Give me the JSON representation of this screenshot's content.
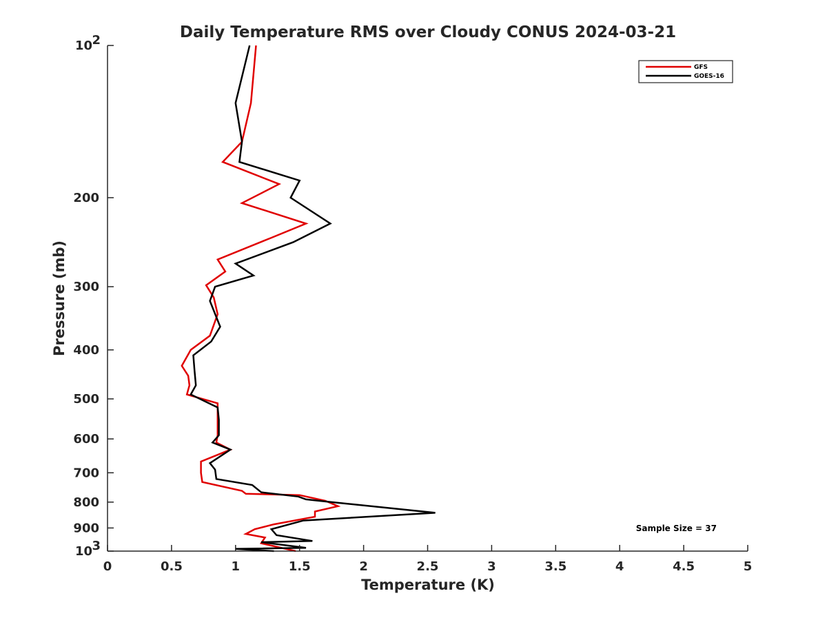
{
  "chart_data": {
    "type": "line",
    "title": "Daily Temperature RMS over Cloudy CONUS 2024-03-21",
    "xlabel": "Temperature (K)",
    "ylabel": "Pressure (mb)",
    "xlim": [
      0,
      5
    ],
    "ylim": [
      100,
      1000
    ],
    "y_scale": "log",
    "y_reversed": true,
    "x_ticks": [
      0,
      0.5,
      1,
      1.5,
      2,
      2.5,
      3,
      3.5,
      4,
      4.5,
      5
    ],
    "x_tick_labels": [
      "0",
      "0.5",
      "1",
      "1.5",
      "2",
      "2.5",
      "3",
      "3.5",
      "4",
      "4.5",
      "5"
    ],
    "y_ticks": [
      200,
      300,
      400,
      500,
      600,
      700,
      800,
      900
    ],
    "y_tick_labels": [
      "200",
      "300",
      "400",
      "500",
      "600",
      "700",
      "800",
      "900"
    ],
    "y_decade_ticks": [
      100,
      1000
    ],
    "y_decade_base": "10",
    "y_decade_exponents": [
      "2",
      "3"
    ],
    "grid": false,
    "legend_position": "top-right",
    "annotation": "Sample Size = 37",
    "series": [
      {
        "name": "GFS",
        "color": "#e00000",
        "x": [
          1.16,
          1.12,
          1.05,
          0.9,
          1.34,
          1.05,
          1.55,
          1.28,
          0.86,
          0.92,
          0.77,
          0.83,
          0.86,
          0.8,
          0.65,
          0.58,
          0.63,
          0.64,
          0.62,
          0.86,
          0.86,
          0.86,
          0.85,
          0.96,
          0.73,
          0.73,
          0.74,
          1.05,
          1.08,
          1.5,
          1.7,
          1.8,
          1.62,
          1.62,
          1.3,
          1.15,
          1.08,
          1.23,
          1.2,
          1.47
        ],
        "y": [
          100,
          130,
          155,
          170,
          188,
          205,
          225,
          240,
          265,
          280,
          298,
          315,
          340,
          375,
          400,
          430,
          450,
          470,
          490,
          510,
          550,
          590,
          610,
          630,
          665,
          700,
          730,
          760,
          770,
          775,
          795,
          815,
          835,
          855,
          885,
          905,
          925,
          940,
          965,
          1000
        ]
      },
      {
        "name": "GOES-16",
        "color": "#000000",
        "x": [
          1.11,
          1.0,
          1.05,
          1.03,
          1.5,
          1.43,
          1.74,
          1.45,
          1.0,
          1.14,
          0.84,
          0.8,
          0.88,
          0.81,
          0.67,
          0.68,
          0.69,
          0.65,
          0.86,
          0.87,
          0.87,
          0.82,
          0.96,
          0.8,
          0.84,
          0.85,
          1.13,
          1.2,
          1.49,
          1.55,
          1.75,
          2.56,
          1.53,
          1.28,
          1.32,
          1.6,
          1.2,
          1.55,
          1.0,
          1.3
        ],
        "y": [
          100,
          130,
          155,
          170,
          185,
          200,
          225,
          245,
          270,
          285,
          300,
          320,
          360,
          385,
          410,
          440,
          470,
          490,
          520,
          550,
          590,
          610,
          630,
          670,
          690,
          720,
          740,
          765,
          780,
          790,
          800,
          840,
          870,
          905,
          930,
          955,
          960,
          985,
          990,
          1000
        ]
      }
    ]
  }
}
